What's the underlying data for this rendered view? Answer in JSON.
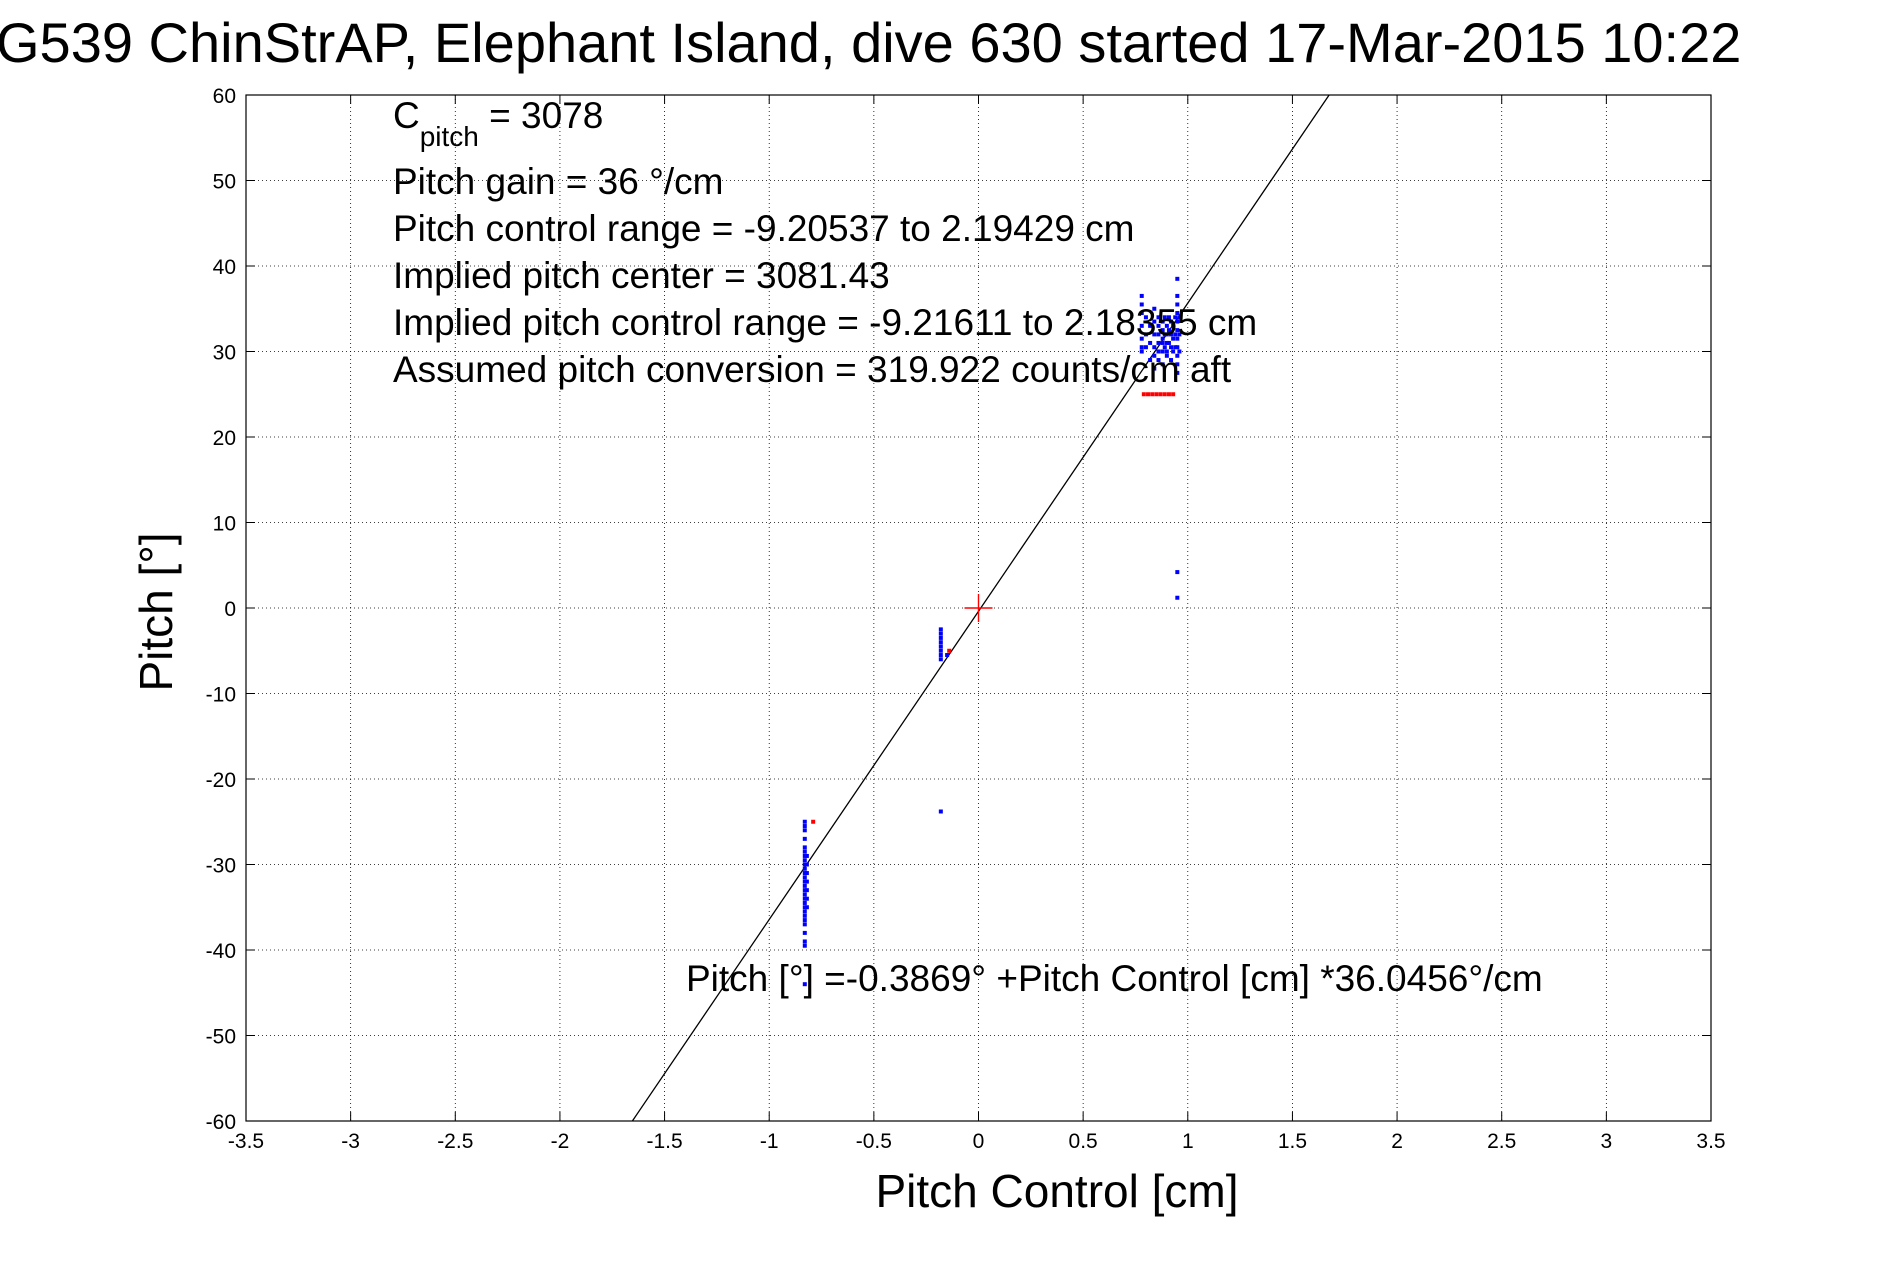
{
  "chart_data": {
    "type": "scatter",
    "title": "G539 ChinStrAP, Elephant Island, dive 630 started 17-Mar-2015 10:22",
    "xlabel": "Pitch Control [cm]",
    "ylabel": "Pitch [°]",
    "xlim": [
      -3.5,
      3.5
    ],
    "ylim": [
      -60,
      60
    ],
    "grid": true,
    "x_ticks": [
      -3.5,
      -3,
      -2.5,
      -2,
      -1.5,
      -1,
      -0.5,
      0,
      0.5,
      1,
      1.5,
      2,
      2.5,
      3,
      3.5
    ],
    "x_tick_labels": [
      "-3.5",
      "-3",
      "-2.5",
      "-2",
      "-1.5",
      "-1",
      "-0.5",
      "0",
      "0.5",
      "1",
      "1.5",
      "2",
      "2.5",
      "3",
      "3.5"
    ],
    "y_ticks": [
      -60,
      -50,
      -40,
      -30,
      -20,
      -10,
      0,
      10,
      20,
      30,
      40,
      50,
      60
    ],
    "y_tick_labels": [
      "-60",
      "-50",
      "-40",
      "-30",
      "-20",
      "-10",
      "0",
      "10",
      "20",
      "30",
      "40",
      "50",
      "60"
    ],
    "annotations": {
      "c_pitch_main": "C",
      "c_pitch_sub": "pitch",
      "c_pitch_value": " = 3078",
      "line2": "Pitch gain = 36 °/cm",
      "line3": "Pitch control range = -9.20537 to 2.19429 cm",
      "line4": "Implied pitch center = 3081.43",
      "line5": "Implied pitch control range = -9.21611 to 2.18355 cm",
      "line6": "Assumed pitch conversion = 319.922 counts/cm aft",
      "fit_equation": "Pitch [°] =-0.3869° +Pitch Control [cm] *36.0456°/cm"
    },
    "fit_line": {
      "intercept": -0.3869,
      "slope": 36.0456,
      "color": "#000000"
    },
    "center_marker": {
      "x": 0,
      "y": 0,
      "color": "#ff0000"
    },
    "series": [
      {
        "color": "#0000ff",
        "points": [
          [
            -0.83,
            -25
          ],
          [
            -0.83,
            -25.5
          ],
          [
            -0.83,
            -26
          ],
          [
            -0.83,
            -27
          ],
          [
            -0.83,
            -28
          ],
          [
            -0.83,
            -28.5
          ],
          [
            -0.83,
            -29
          ],
          [
            -0.83,
            -29.5
          ],
          [
            -0.83,
            -30
          ],
          [
            -0.83,
            -30.5
          ],
          [
            -0.83,
            -31
          ],
          [
            -0.83,
            -31.5
          ],
          [
            -0.83,
            -32
          ],
          [
            -0.83,
            -32.5
          ],
          [
            -0.83,
            -33
          ],
          [
            -0.83,
            -33.5
          ],
          [
            -0.83,
            -34
          ],
          [
            -0.83,
            -34.5
          ],
          [
            -0.83,
            -35
          ],
          [
            -0.83,
            -35.5
          ],
          [
            -0.83,
            -36
          ],
          [
            -0.83,
            -36.5
          ],
          [
            -0.83,
            -37
          ],
          [
            -0.83,
            -38
          ],
          [
            -0.83,
            -39
          ],
          [
            -0.83,
            -39.5
          ],
          [
            -0.83,
            -44
          ],
          [
            -0.82,
            -29
          ],
          [
            -0.82,
            -30
          ],
          [
            -0.82,
            -31
          ],
          [
            -0.82,
            -32
          ],
          [
            -0.82,
            -33
          ],
          [
            -0.82,
            -34
          ],
          [
            -0.82,
            -35
          ],
          [
            -0.18,
            -2.5
          ],
          [
            -0.18,
            -3
          ],
          [
            -0.18,
            -3.5
          ],
          [
            -0.18,
            -4
          ],
          [
            -0.18,
            -4.5
          ],
          [
            -0.18,
            -5
          ],
          [
            -0.18,
            -5.5
          ],
          [
            -0.18,
            -6
          ],
          [
            -0.15,
            -5.5
          ],
          [
            -0.18,
            -23.8
          ],
          [
            0.78,
            36.5
          ],
          [
            0.78,
            35.5
          ],
          [
            0.78,
            34.5
          ],
          [
            0.78,
            33
          ],
          [
            0.78,
            31.5
          ],
          [
            0.78,
            30.5
          ],
          [
            0.78,
            30
          ],
          [
            0.8,
            34
          ],
          [
            0.8,
            32
          ],
          [
            0.8,
            30.5
          ],
          [
            0.82,
            33
          ],
          [
            0.82,
            31
          ],
          [
            0.82,
            29
          ],
          [
            0.84,
            35
          ],
          [
            0.84,
            33.5
          ],
          [
            0.84,
            32
          ],
          [
            0.84,
            30.5
          ],
          [
            0.84,
            29.5
          ],
          [
            0.84,
            28
          ],
          [
            0.86,
            34
          ],
          [
            0.86,
            33
          ],
          [
            0.86,
            32
          ],
          [
            0.86,
            31
          ],
          [
            0.86,
            30
          ],
          [
            0.86,
            29
          ],
          [
            0.88,
            33.5
          ],
          [
            0.88,
            32.5
          ],
          [
            0.88,
            31.5
          ],
          [
            0.88,
            31
          ],
          [
            0.88,
            30
          ],
          [
            0.88,
            28.5
          ],
          [
            0.89,
            34
          ],
          [
            0.89,
            32
          ],
          [
            0.89,
            30.5
          ],
          [
            0.9,
            33
          ],
          [
            0.9,
            32
          ],
          [
            0.9,
            31
          ],
          [
            0.9,
            30
          ],
          [
            0.9,
            29.5
          ],
          [
            0.91,
            34
          ],
          [
            0.91,
            32.5
          ],
          [
            0.91,
            31
          ],
          [
            0.92,
            33.5
          ],
          [
            0.92,
            32
          ],
          [
            0.92,
            30.5
          ],
          [
            0.92,
            29
          ],
          [
            0.93,
            33
          ],
          [
            0.93,
            31.5
          ],
          [
            0.93,
            30
          ],
          [
            0.94,
            34
          ],
          [
            0.94,
            32
          ],
          [
            0.94,
            30.5
          ],
          [
            0.95,
            38.5
          ],
          [
            0.95,
            36.5
          ],
          [
            0.95,
            35.5
          ],
          [
            0.95,
            34.5
          ],
          [
            0.95,
            33.5
          ],
          [
            0.95,
            32.5
          ],
          [
            0.95,
            31.5
          ],
          [
            0.95,
            30.5
          ],
          [
            0.95,
            29.5
          ],
          [
            0.95,
            28.5
          ],
          [
            0.95,
            27.5
          ],
          [
            0.96,
            34
          ],
          [
            0.96,
            32
          ],
          [
            0.96,
            30
          ],
          [
            0.95,
            4.2
          ],
          [
            0.95,
            1.2
          ]
        ]
      },
      {
        "color": "#ff0000",
        "points": [
          [
            -0.79,
            -25
          ],
          [
            -0.14,
            -5
          ],
          [
            0.79,
            25
          ],
          [
            0.81,
            25
          ],
          [
            0.83,
            25
          ],
          [
            0.85,
            25
          ],
          [
            0.87,
            25
          ],
          [
            0.89,
            25
          ],
          [
            0.91,
            25
          ],
          [
            0.93,
            25
          ]
        ]
      }
    ]
  }
}
